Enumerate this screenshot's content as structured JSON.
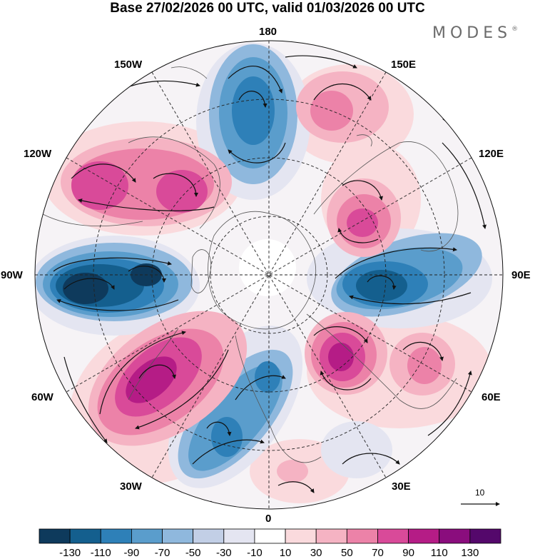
{
  "title": "Base 27/02/2026 00 UTC, valid 01/03/2026 00 UTC",
  "brand": {
    "name": "MODES",
    "mark": "®"
  },
  "longitudes": {
    "top": "180",
    "top_left": "150W",
    "top_right": "150E",
    "upper_left": "120W",
    "upper_right": "120E",
    "left": "90W",
    "right": "90E",
    "lower_left": "60W",
    "lower_right": "60E",
    "bottom_left": "30W",
    "bottom_right": "30E",
    "bottom": "0"
  },
  "reference_vector": {
    "value": "10"
  },
  "colorbar": {
    "labels": [
      "-130",
      "-110",
      "-90",
      "-70",
      "-50",
      "-30",
      "-10",
      "10",
      "30",
      "50",
      "70",
      "90",
      "110",
      "130"
    ],
    "colors": [
      "#0e3a5c",
      "#145f8e",
      "#2e80b8",
      "#5a9dcc",
      "#8fb8dd",
      "#c2cfe6",
      "#e4e5f1",
      "#ffffff",
      "#fadadd",
      "#f5b3c3",
      "#ec82a8",
      "#d94a99",
      "#b51c86",
      "#8a0d7d",
      "#54086b"
    ]
  },
  "colors": {
    "negative_strong": "#145f8e",
    "positive_strong": "#b51c86",
    "land_outline": "#555555"
  }
}
